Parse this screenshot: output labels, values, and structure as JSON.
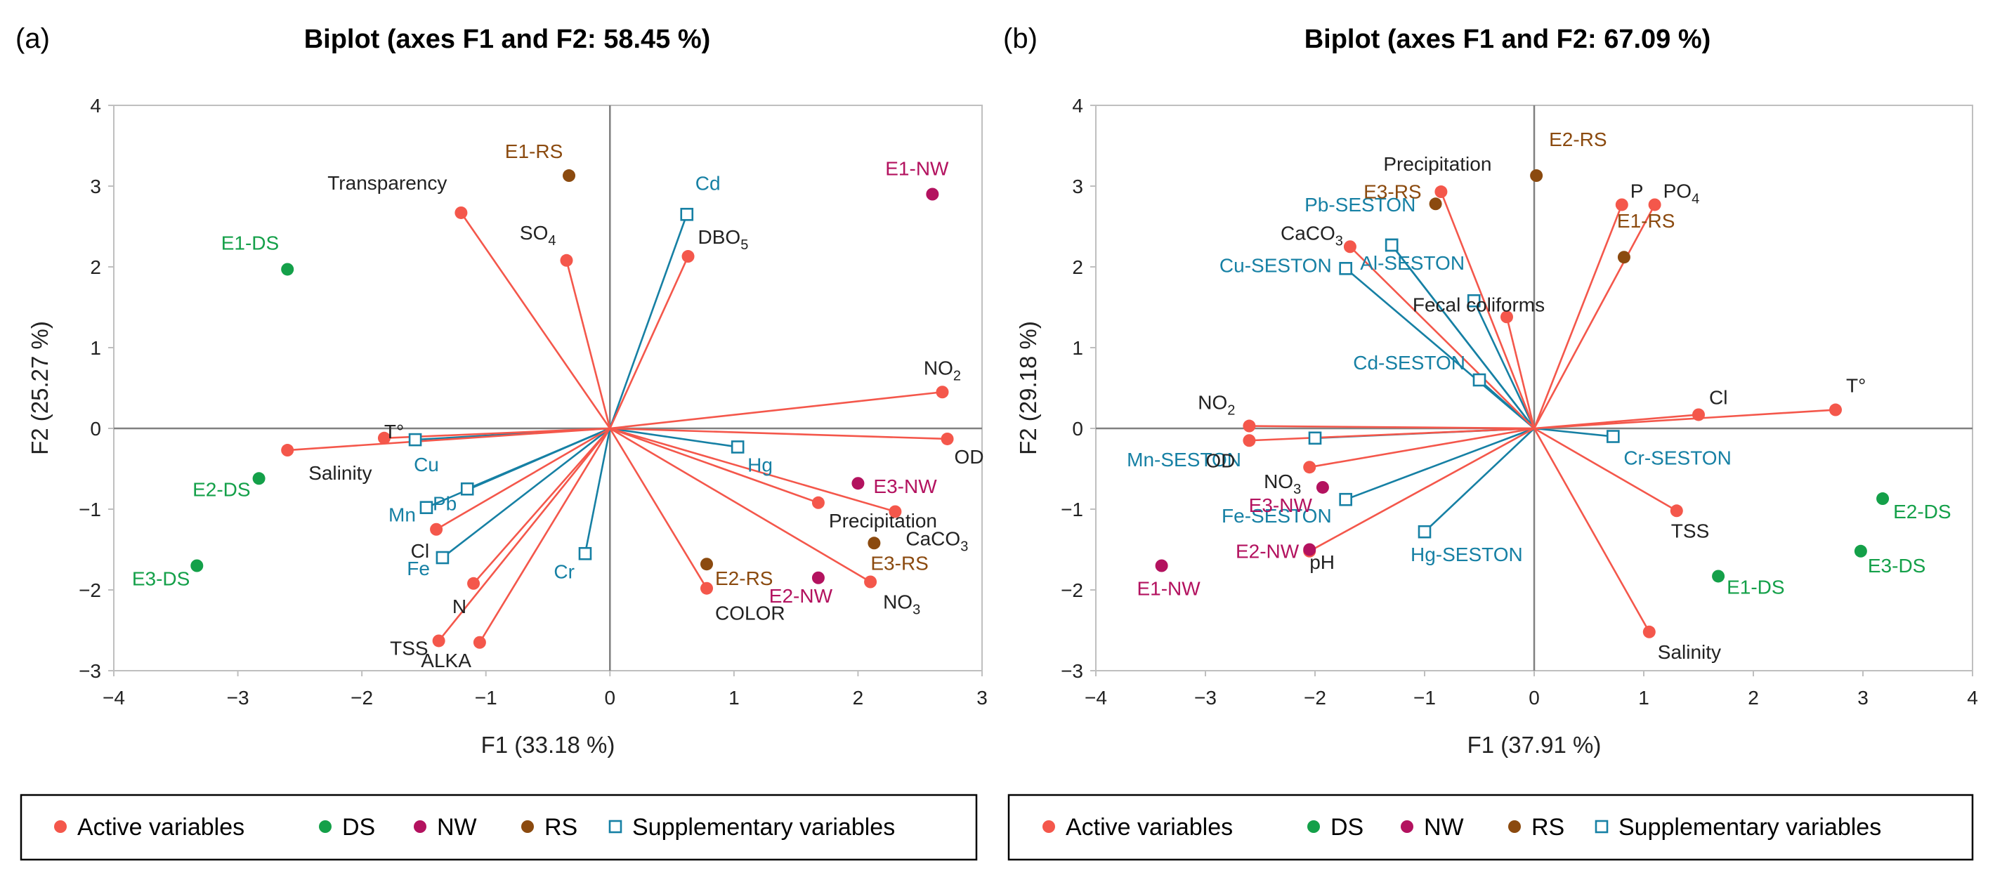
{
  "colors": {
    "active": "#f4574b",
    "ds": "#14a049",
    "nw": "#b3125f",
    "rs": "#8b4a0f",
    "supp": "#1680a4",
    "axis": "#808080",
    "text": "#222222"
  },
  "chart_data": [
    {
      "panel_label": "(a)",
      "type": "scatter",
      "title": "Biplot (axes F1 and F2: 58.45 %)",
      "xlabel": "F1 (33.18 %)",
      "ylabel": "F2 (25.27 %)",
      "xlim": [
        -4,
        3
      ],
      "ylim": [
        -3,
        4
      ],
      "xticks": [
        "−4",
        "−3",
        "−2",
        "−1",
        "0",
        "1",
        "2",
        "3"
      ],
      "yticks": [
        "−3",
        "−2",
        "−1",
        "0",
        "1",
        "2",
        "3",
        "4"
      ],
      "legend": [
        "Active variables",
        "DS",
        "NW",
        "RS",
        "Supplementary variables"
      ],
      "active": [
        {
          "label": "Transparency",
          "x": -1.2,
          "y": 2.67
        },
        {
          "label": "SO4",
          "x": -0.35,
          "y": 2.08
        },
        {
          "label": "DBO5",
          "x": 0.63,
          "y": 2.13
        },
        {
          "label": "NO2",
          "x": 2.68,
          "y": 0.45
        },
        {
          "label": "OD",
          "x": 2.72,
          "y": -0.13
        },
        {
          "label": "Precipitation",
          "x": 1.68,
          "y": -0.92
        },
        {
          "label": "CaCO3",
          "x": 2.3,
          "y": -1.03
        },
        {
          "label": "NO3",
          "x": 2.1,
          "y": -1.9
        },
        {
          "label": "COLOR",
          "x": 0.78,
          "y": -1.98
        },
        {
          "label": "ALKA",
          "x": -1.05,
          "y": -2.65
        },
        {
          "label": "TSS",
          "x": -1.38,
          "y": -2.63
        },
        {
          "label": "N",
          "x": -1.1,
          "y": -1.92
        },
        {
          "label": "Cl",
          "x": -1.4,
          "y": -1.25
        },
        {
          "label": "Salinity",
          "x": -2.6,
          "y": -0.27
        },
        {
          "label": "T°",
          "x": -1.82,
          "y": -0.12
        }
      ],
      "supplementary": [
        {
          "label": "Cd",
          "x": 0.62,
          "y": 2.65
        },
        {
          "label": "Hg",
          "x": 1.03,
          "y": -0.23
        },
        {
          "label": "Cu",
          "x": -1.57,
          "y": -0.14
        },
        {
          "label": "Pb",
          "x": -1.15,
          "y": -0.75
        },
        {
          "label": "Mn",
          "x": -1.48,
          "y": -0.98
        },
        {
          "label": "Fe",
          "x": -1.35,
          "y": -1.6
        },
        {
          "label": "Cr",
          "x": -0.2,
          "y": -1.55
        }
      ],
      "observations": [
        {
          "label": "E1-DS",
          "group": "DS",
          "x": -2.6,
          "y": 1.97
        },
        {
          "label": "E2-DS",
          "group": "DS",
          "x": -2.83,
          "y": -0.62
        },
        {
          "label": "E3-DS",
          "group": "DS",
          "x": -3.33,
          "y": -1.7
        },
        {
          "label": "E1-NW",
          "group": "NW",
          "x": 2.6,
          "y": 2.9
        },
        {
          "label": "E2-NW",
          "group": "NW",
          "x": 1.68,
          "y": -1.85
        },
        {
          "label": "E3-NW",
          "group": "NW",
          "x": 2.0,
          "y": -0.68
        },
        {
          "label": "E1-RS",
          "group": "RS",
          "x": -0.33,
          "y": 3.13
        },
        {
          "label": "E2-RS",
          "group": "RS",
          "x": 0.78,
          "y": -1.68
        },
        {
          "label": "E3-RS",
          "group": "RS",
          "x": 2.13,
          "y": -1.42
        }
      ]
    },
    {
      "panel_label": "(b)",
      "type": "scatter",
      "title": "Biplot (axes F1 and F2: 67.09 %)",
      "xlabel": "F1 (37.91 %)",
      "ylabel": "F2 (29.18 %)",
      "xlim": [
        -4,
        4
      ],
      "ylim": [
        -3,
        4
      ],
      "xticks": [
        "−4",
        "−3",
        "−2",
        "−1",
        "0",
        "1",
        "2",
        "3",
        "4"
      ],
      "yticks": [
        "−3",
        "−2",
        "−1",
        "0",
        "1",
        "2",
        "3",
        "4"
      ],
      "legend": [
        "Active variables",
        "DS",
        "NW",
        "RS",
        "Supplementary variables"
      ],
      "active": [
        {
          "label": "Precipitation",
          "x": -0.85,
          "y": 2.93
        },
        {
          "label": "P",
          "x": 0.8,
          "y": 2.77
        },
        {
          "label": "PO4",
          "x": 1.1,
          "y": 2.77
        },
        {
          "label": "CaCO3",
          "x": -1.68,
          "y": 2.25
        },
        {
          "label": "Fecal coliforms",
          "x": -0.25,
          "y": 1.38
        },
        {
          "label": "Cl",
          "x": 1.5,
          "y": 0.17
        },
        {
          "label": "T°",
          "x": 2.75,
          "y": 0.23
        },
        {
          "label": "NO2",
          "x": -2.6,
          "y": 0.03
        },
        {
          "label": "OD",
          "x": -2.6,
          "y": -0.15
        },
        {
          "label": "NO3",
          "x": -2.05,
          "y": -0.48
        },
        {
          "label": "pH",
          "x": -2.05,
          "y": -1.52
        },
        {
          "label": "TSS",
          "x": 1.3,
          "y": -1.02
        },
        {
          "label": "Salinity",
          "x": 1.05,
          "y": -2.52
        }
      ],
      "supplementary": [
        {
          "label": "Pb-SESTON",
          "x": -1.3,
          "y": 2.27
        },
        {
          "label": "Cu-SESTON",
          "x": -1.72,
          "y": 1.98
        },
        {
          "label": "Al-SESTON",
          "x": -1.3,
          "y": 2.27
        },
        {
          "label": "Cd-SESTON",
          "x": -0.5,
          "y": 0.6
        },
        {
          "label": "Mn-SESTON",
          "x": -2.0,
          "y": -0.12
        },
        {
          "label": "Fe-SESTON",
          "x": -1.72,
          "y": -0.88
        },
        {
          "label": "Hg-SESTON",
          "x": -1.0,
          "y": -1.28
        },
        {
          "label": "Cr-SESTON",
          "x": 0.72,
          "y": -0.1
        },
        {
          "label": "",
          "x": -0.55,
          "y": 1.58
        }
      ],
      "observations": [
        {
          "label": "E1-DS",
          "group": "DS",
          "x": 1.68,
          "y": -1.83
        },
        {
          "label": "E2-DS",
          "group": "DS",
          "x": 3.18,
          "y": -0.87
        },
        {
          "label": "E3-DS",
          "group": "DS",
          "x": 2.98,
          "y": -1.52
        },
        {
          "label": "E1-NW",
          "group": "NW",
          "x": -3.4,
          "y": -1.7
        },
        {
          "label": "E2-NW",
          "group": "NW",
          "x": -2.05,
          "y": -1.5
        },
        {
          "label": "E3-NW",
          "group": "NW",
          "x": -1.93,
          "y": -0.73
        },
        {
          "label": "E1-RS",
          "group": "RS",
          "x": 0.82,
          "y": 2.12
        },
        {
          "label": "E2-RS",
          "group": "RS",
          "x": 0.02,
          "y": 3.13
        },
        {
          "label": "E3-RS",
          "group": "RS",
          "x": -0.9,
          "y": 2.78
        }
      ]
    }
  ]
}
